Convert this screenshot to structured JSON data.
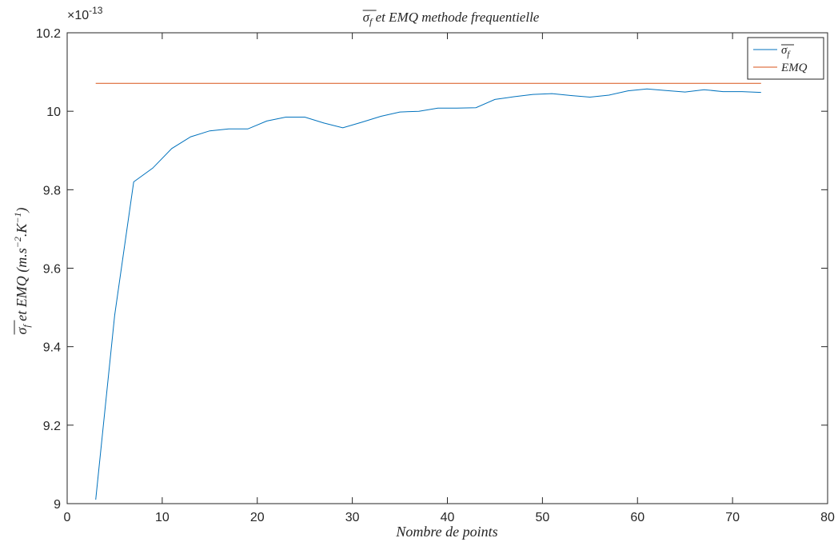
{
  "chart_data": {
    "type": "line",
    "title": "σf et EMQ methode frequentielle",
    "title_parts": {
      "symbol": "σ",
      "subscript": "f",
      "rest": " et EMQ methode frequentielle"
    },
    "xlabel": "Nombre de points",
    "ylabel_parts": {
      "symbol": "σ",
      "subscript": "f",
      "middle": " et EMQ (m.s",
      "sup1": "−2",
      "middle2": ".K",
      "sup2": "−1",
      "end": ")"
    },
    "xlim": [
      0,
      80
    ],
    "ylim": [
      9.0,
      10.2
    ],
    "y_exponent": "×10",
    "y_exponent_power": "-13",
    "x_ticks": [
      0,
      10,
      20,
      30,
      40,
      50,
      60,
      70,
      80
    ],
    "x_tick_labels": [
      "0",
      "10",
      "20",
      "30",
      "40",
      "50",
      "60",
      "70",
      "80"
    ],
    "y_ticks": [
      9.0,
      9.2,
      9.4,
      9.6,
      9.8,
      10.0,
      10.2
    ],
    "y_tick_labels": [
      "9",
      "9.2",
      "9.4",
      "9.6",
      "9.8",
      "10",
      "10.2"
    ],
    "grid": false,
    "legend_position": "top-right",
    "series": [
      {
        "name": "σf",
        "legend_symbol": "σ",
        "legend_sub": "f",
        "color": "#0072BD",
        "x": [
          3,
          5,
          7,
          9,
          11,
          13,
          15,
          17,
          19,
          21,
          23,
          25,
          27,
          29,
          31,
          33,
          35,
          37,
          39,
          41,
          43,
          45,
          47,
          49,
          51,
          53,
          55,
          57,
          59,
          61,
          63,
          65,
          67,
          69,
          71,
          73
        ],
        "y": [
          9.01,
          9.48,
          9.82,
          9.855,
          9.905,
          9.935,
          9.95,
          9.955,
          9.955,
          9.975,
          9.985,
          9.985,
          9.97,
          9.958,
          9.972,
          9.987,
          9.998,
          10.0,
          10.008,
          10.008,
          10.009,
          10.03,
          10.037,
          10.043,
          10.045,
          10.04,
          10.036,
          10.041,
          10.052,
          10.057,
          10.053,
          10.049,
          10.055,
          10.05,
          10.05,
          10.048
        ]
      },
      {
        "name": "EMQ",
        "legend_symbol": "EMQ",
        "legend_sub": "",
        "color": "#D95319",
        "x": [
          3,
          73
        ],
        "y": [
          10.071,
          10.071
        ]
      }
    ]
  }
}
